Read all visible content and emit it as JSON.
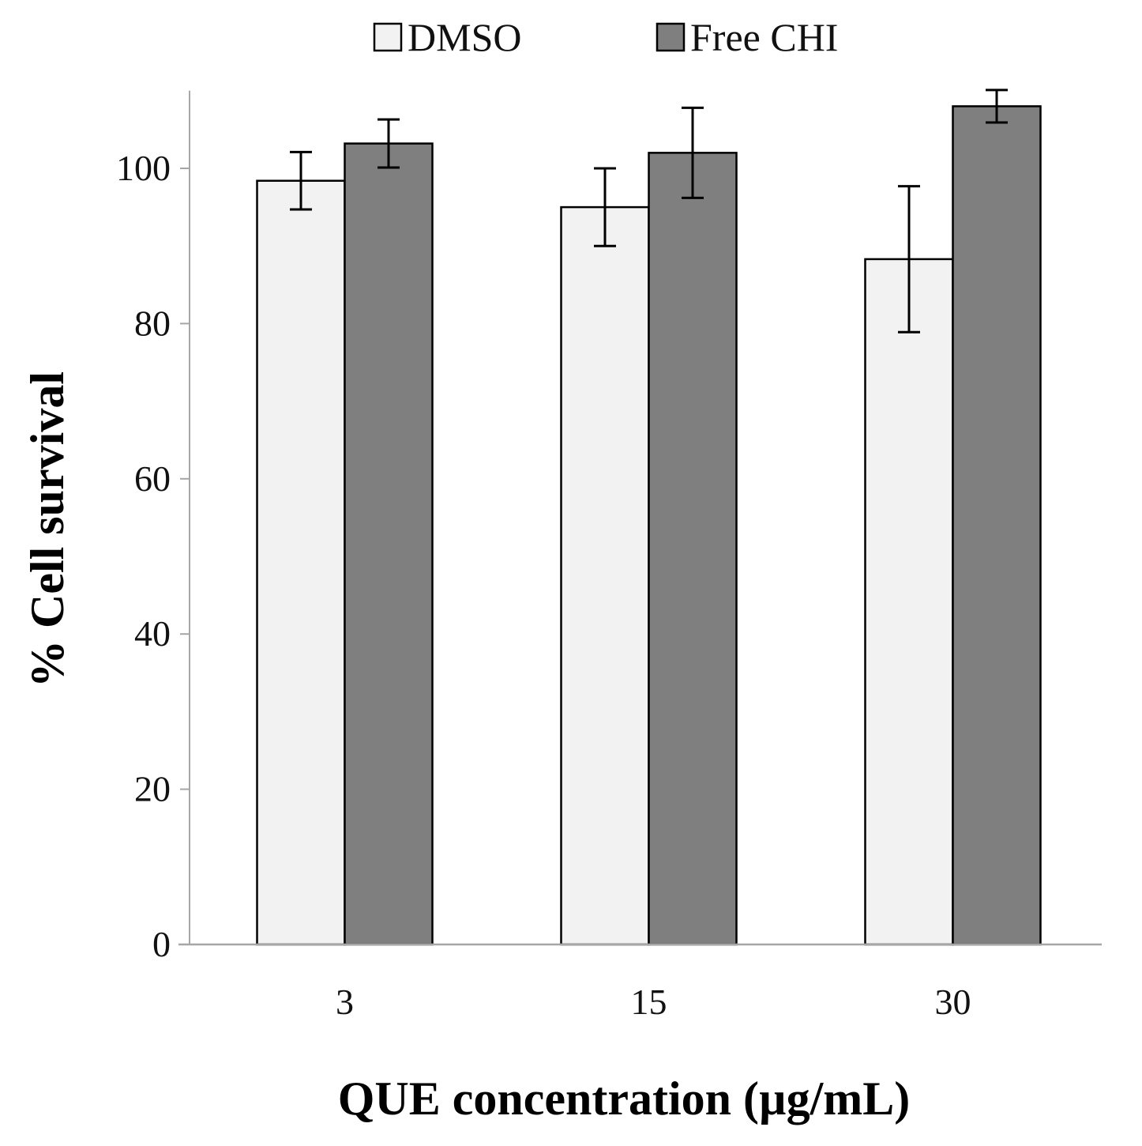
{
  "chart_data": {
    "type": "bar",
    "title": "",
    "xlabel": "QUE concentration (µg/mL)",
    "ylabel": "% Cell survival",
    "categories": [
      "3",
      "15",
      "30"
    ],
    "ylim": [
      0,
      110
    ],
    "yticks": [
      0,
      20,
      40,
      60,
      80,
      100
    ],
    "grid": false,
    "legend_position": "top-center",
    "series": [
      {
        "name": "DMSO",
        "color": "#f2f2f2",
        "values": [
          98.4,
          95.0,
          88.3
        ],
        "errors": [
          3.7,
          5.0,
          9.4
        ]
      },
      {
        "name": "Free CHI",
        "color": "#7f7f7f",
        "values": [
          103.2,
          102.0,
          108.0
        ],
        "errors": [
          3.1,
          5.8,
          2.1
        ]
      }
    ]
  }
}
